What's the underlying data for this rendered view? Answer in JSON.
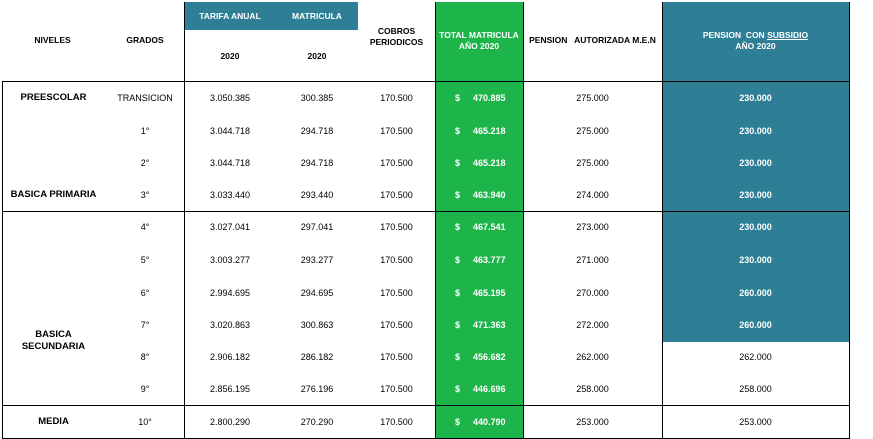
{
  "headers": {
    "niveles": "NIVELES",
    "grados": "GRADOS",
    "tarifa": "TARIFA ANUAL",
    "tarifa_year": "2020",
    "matricula": "MATRICULA",
    "matricula_year": "2020",
    "cobros_1": "COBROS",
    "cobros_2": "PERIODICOS",
    "total_1": "TOTAL MATRICULA",
    "total_2": "AÑO 2020",
    "pension_men": "PENSION   AUTORIZADA M.E.N",
    "pension_sub_1a": "PENSION  CON ",
    "pension_sub_1b": "SUBSIDIO",
    "pension_sub_2": "AÑO 2020"
  },
  "levels": {
    "preescolar": "PREESCOLAR",
    "primaria": "BASICA PRIMARIA",
    "secundaria_1": "BASICA",
    "secundaria_2": "SECUNDARIA",
    "media": "MEDIA"
  },
  "currency": "$",
  "rows": [
    {
      "grado": "TRANSICION",
      "tarifa": "3.050.385",
      "matricula": "300.385",
      "cobros": "170.500",
      "total": "470.885",
      "pension_men": "275.000",
      "subsidio": "230.000",
      "highlight": true
    },
    {
      "grado": "1°",
      "tarifa": "3.044.718",
      "matricula": "294.718",
      "cobros": "170.500",
      "total": "465.218",
      "pension_men": "275.000",
      "subsidio": "230.000",
      "highlight": true
    },
    {
      "grado": "2°",
      "tarifa": "3.044.718",
      "matricula": "294.718",
      "cobros": "170.500",
      "total": "465.218",
      "pension_men": "275.000",
      "subsidio": "230.000",
      "highlight": true
    },
    {
      "grado": "3°",
      "tarifa": "3.033.440",
      "matricula": "293.440",
      "cobros": "170.500",
      "total": "463.940",
      "pension_men": "274.000",
      "subsidio": "230.000",
      "highlight": true
    },
    {
      "grado": "4°",
      "tarifa": "3.027.041",
      "matricula": "297.041",
      "cobros": "170.500",
      "total": "467.541",
      "pension_men": "273.000",
      "subsidio": "230.000",
      "highlight": true
    },
    {
      "grado": "5°",
      "tarifa": "3.003.277",
      "matricula": "293.277",
      "cobros": "170.500",
      "total": "463.777",
      "pension_men": "271.000",
      "subsidio": "230.000",
      "highlight": true
    },
    {
      "grado": "6°",
      "tarifa": "2.994.695",
      "matricula": "294.695",
      "cobros": "170.500",
      "total": "465.195",
      "pension_men": "270.000",
      "subsidio": "260.000",
      "highlight": true
    },
    {
      "grado": "7°",
      "tarifa": "3.020.863",
      "matricula": "300.863",
      "cobros": "170.500",
      "total": "471.363",
      "pension_men": "272.000",
      "subsidio": "260.000",
      "highlight": true
    },
    {
      "grado": "8°",
      "tarifa": "2.906.182",
      "matricula": "286.182",
      "cobros": "170.500",
      "total": "456.682",
      "pension_men": "262.000",
      "subsidio": "262.000",
      "highlight": false
    },
    {
      "grado": "9°",
      "tarifa": "2.856.195",
      "matricula": "276.196",
      "cobros": "170.500",
      "total": "446.696",
      "pension_men": "258.000",
      "subsidio": "258.000",
      "highlight": false
    },
    {
      "grado": "10°",
      "tarifa": "2.800.290",
      "matricula": "270.290",
      "cobros": "170.500",
      "total": "440.790",
      "pension_men": "253.000",
      "subsidio": "253.000",
      "highlight": false
    }
  ],
  "colors": {
    "teal": "#2e7f96",
    "green": "#1db54a"
  }
}
